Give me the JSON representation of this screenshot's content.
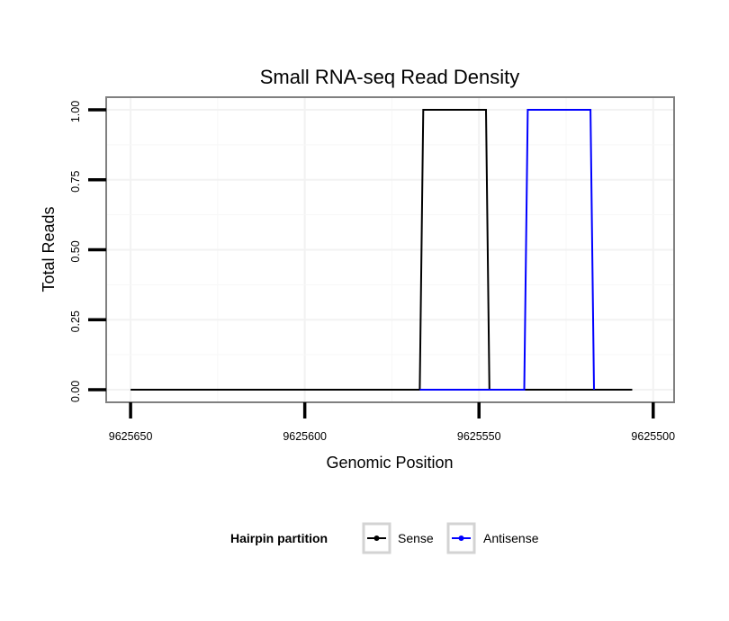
{
  "chart_data": {
    "type": "line",
    "title": "Small RNA-seq Read Density",
    "xlabel": "Genomic Position",
    "ylabel": "Total Reads",
    "x_reversed": true,
    "xlim": [
      9625657,
      9625494
    ],
    "ylim": [
      -0.045,
      1.045
    ],
    "x_ticks": [
      9625650,
      9625600,
      9625550,
      9625500
    ],
    "x_tick_labels": [
      "9625650",
      "9625600",
      "9625550",
      "9625500"
    ],
    "y_ticks": [
      0,
      0.25,
      0.5,
      0.75,
      1
    ],
    "y_tick_labels": [
      "0.00",
      "0.25",
      "0.50",
      "0.75",
      "1.00"
    ],
    "grid": true,
    "legend": {
      "title": "Hairpin partition",
      "position": "bottom"
    },
    "series": [
      {
        "name": "Sense",
        "color": "#000000",
        "x": [
          9625650,
          9625567,
          9625566,
          9625548,
          9625547,
          9625506
        ],
        "y": [
          0,
          0,
          1,
          1,
          0,
          0
        ]
      },
      {
        "name": "Antisense",
        "color": "#0000ff",
        "x": [
          9625567,
          9625537,
          9625536,
          9625518,
          9625517
        ],
        "y": [
          0,
          0,
          1,
          1,
          0
        ]
      }
    ]
  }
}
